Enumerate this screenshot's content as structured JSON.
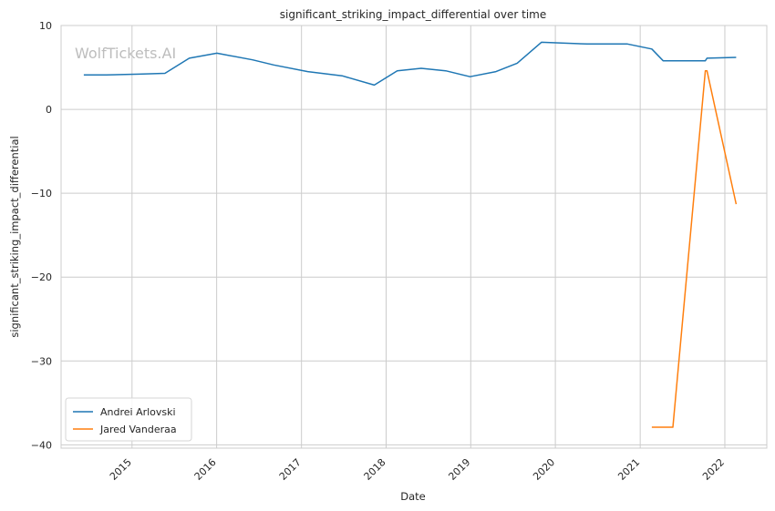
{
  "chart_data": {
    "type": "line",
    "title": "significant_striking_impact_differential over time",
    "xlabel": "Date",
    "ylabel": "significant_striking_impact_differential",
    "watermark": "WolfTickets.AI",
    "xlim": [
      "2014-03-01",
      "2022-07-01"
    ],
    "ylim": [
      -40.4,
      10
    ],
    "y_ticks": [
      10,
      0,
      -10,
      -20,
      -30,
      -40
    ],
    "y_tick_labels": [
      "10",
      "0",
      "−10",
      "−20",
      "−30",
      "−40"
    ],
    "x_ticks": [
      "2015-01-01",
      "2016-01-01",
      "2017-01-01",
      "2018-01-01",
      "2019-01-01",
      "2020-01-01",
      "2021-01-01",
      "2022-01-01"
    ],
    "x_tick_labels": [
      "2015",
      "2016",
      "2017",
      "2018",
      "2019",
      "2020",
      "2021",
      "2022"
    ],
    "grid": true,
    "legend_position": "lower-left",
    "series": [
      {
        "name": "Andrei Arlovski",
        "color": "#1f77b4",
        "points": [
          {
            "x": "2014-06-07",
            "y": 4.1
          },
          {
            "x": "2014-09-13",
            "y": 4.1
          },
          {
            "x": "2015-01-31",
            "y": 4.2
          },
          {
            "x": "2015-05-23",
            "y": 4.3
          },
          {
            "x": "2015-09-05",
            "y": 6.1
          },
          {
            "x": "2016-01-02",
            "y": 6.7
          },
          {
            "x": "2016-06-04",
            "y": 5.9
          },
          {
            "x": "2016-09-03",
            "y": 5.3
          },
          {
            "x": "2017-01-28",
            "y": 4.5
          },
          {
            "x": "2017-06-25",
            "y": 4.0
          },
          {
            "x": "2017-11-11",
            "y": 2.9
          },
          {
            "x": "2018-02-18",
            "y": 4.6
          },
          {
            "x": "2018-06-01",
            "y": 4.9
          },
          {
            "x": "2018-09-15",
            "y": 4.6
          },
          {
            "x": "2018-12-29",
            "y": 3.9
          },
          {
            "x": "2019-04-20",
            "y": 4.5
          },
          {
            "x": "2019-07-20",
            "y": 5.5
          },
          {
            "x": "2019-11-02",
            "y": 8.0
          },
          {
            "x": "2020-05-16",
            "y": 7.8
          },
          {
            "x": "2020-11-07",
            "y": 7.8
          },
          {
            "x": "2021-02-20",
            "y": 7.2
          },
          {
            "x": "2021-04-10",
            "y": 5.8
          },
          {
            "x": "2021-09-04",
            "y": 5.8
          },
          {
            "x": "2021-10-09",
            "y": 5.8
          },
          {
            "x": "2021-10-16",
            "y": 6.1
          },
          {
            "x": "2022-02-19",
            "y": 6.2
          }
        ]
      },
      {
        "name": "Jared Vanderaa",
        "color": "#ff7f0e",
        "points": [
          {
            "x": "2021-02-20",
            "y": -37.9
          },
          {
            "x": "2021-05-22",
            "y": -37.9
          },
          {
            "x": "2021-10-09",
            "y": 4.6
          },
          {
            "x": "2021-10-16",
            "y": 4.6
          },
          {
            "x": "2022-02-19",
            "y": -11.3
          }
        ]
      }
    ]
  }
}
